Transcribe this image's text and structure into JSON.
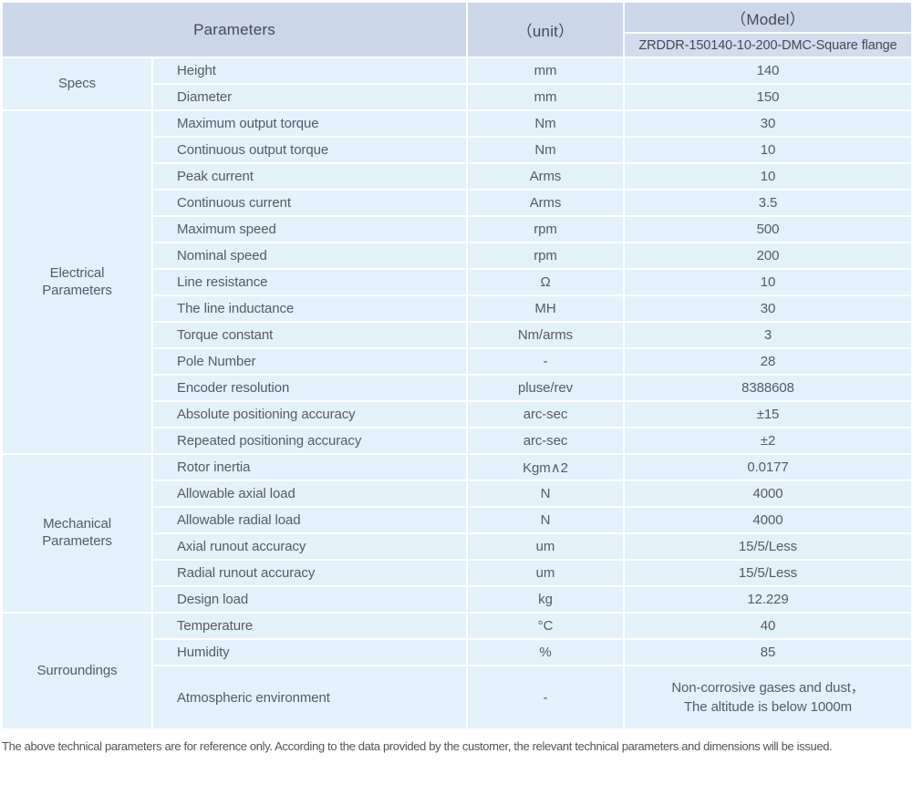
{
  "table": {
    "header": {
      "parameters_label": "Parameters",
      "unit_label": "（unit）",
      "model_label": "（Model）",
      "model_value": "ZRDDR-150140-10-200-DMC-Square flange"
    },
    "sections": [
      {
        "category": "Specs",
        "rows": [
          {
            "param": "Height",
            "unit": "mm",
            "value": "140"
          },
          {
            "param": "Diameter",
            "unit": "mm",
            "value": "150"
          }
        ]
      },
      {
        "category": "Electrical Parameters",
        "rows": [
          {
            "param": "Maximum output torque",
            "unit": "Nm",
            "value": "30"
          },
          {
            "param": "Continuous output torque",
            "unit": "Nm",
            "value": "10"
          },
          {
            "param": "Peak current",
            "unit": "Arms",
            "value": "10"
          },
          {
            "param": "Continuous current",
            "unit": "Arms",
            "value": "3.5"
          },
          {
            "param": "Maximum speed",
            "unit": "rpm",
            "value": "500"
          },
          {
            "param": "Nominal speed",
            "unit": "rpm",
            "value": "200"
          },
          {
            "param": "Line resistance",
            "unit": "Ω",
            "value": "10"
          },
          {
            "param": "The line inductance",
            "unit": "MH",
            "value": "30"
          },
          {
            "param": "Torque constant",
            "unit": "Nm/arms",
            "value": "3"
          },
          {
            "param": "Pole Number",
            "unit": "-",
            "value": "28"
          },
          {
            "param": "Encoder resolution",
            "unit": "pluse/rev",
            "value": "8388608"
          },
          {
            "param": "Absolute positioning accuracy",
            "unit": "arc-sec",
            "value": "±15"
          },
          {
            "param": "Repeated positioning accuracy",
            "unit": "arc-sec",
            "value": "±2"
          }
        ]
      },
      {
        "category": "Mechanical Parameters",
        "rows": [
          {
            "param": "Rotor inertia",
            "unit": "Kgm∧2",
            "value": "0.0177"
          },
          {
            "param": "Allowable axial load",
            "unit": "N",
            "value": "4000"
          },
          {
            "param": "Allowable radial load",
            "unit": "N",
            "value": "4000"
          },
          {
            "param": "Axial runout accuracy",
            "unit": "um",
            "value": "15/5/Less"
          },
          {
            "param": "Radial runout accuracy",
            "unit": "um",
            "value": "15/5/Less"
          },
          {
            "param": "Design load",
            "unit": "kg",
            "value": "12.229"
          }
        ]
      },
      {
        "category": "Surroundings",
        "rows": [
          {
            "param": "Temperature",
            "unit": "°C",
            "value": "40"
          },
          {
            "param": "Humidity",
            "unit": "%",
            "value": "85"
          },
          {
            "param": "Atmospheric environment",
            "unit": "-",
            "value": "Non-corrosive gases and dust，\nThe altitude is below 1000m",
            "tall": true
          }
        ]
      }
    ]
  },
  "footer": {
    "note": "The above technical parameters are for reference only. According to the data provided by the customer, the relevant technical parameters and dimensions will be issued."
  },
  "colors": {
    "header_bg": "#ccd6e9",
    "model_row_bg": "#d3dcec",
    "row_bg": "#e3f1fb",
    "grid_line": "#ffffff",
    "header_text": "#434956",
    "body_text": "#565b63"
  }
}
